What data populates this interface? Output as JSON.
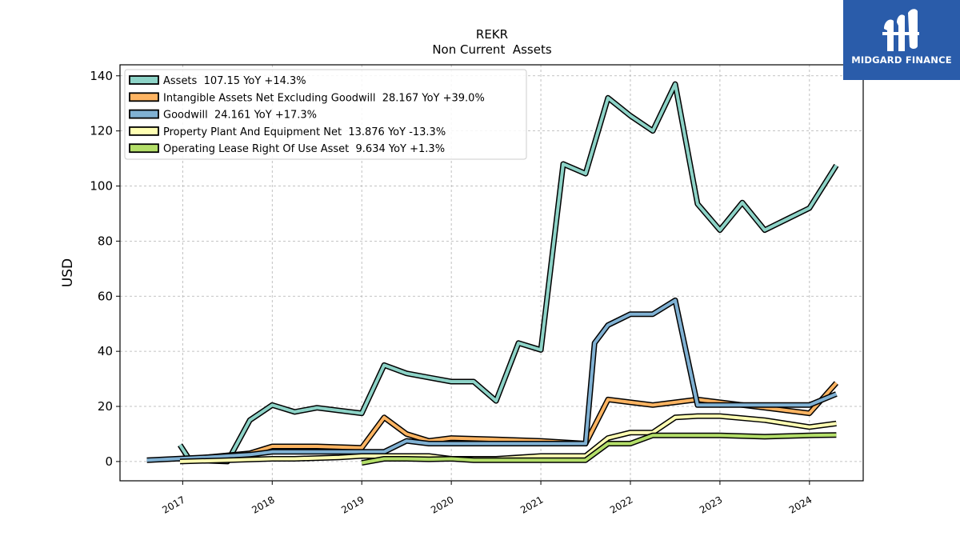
{
  "header": {
    "ticker": "REKR",
    "subtitle": "Non Current  Assets"
  },
  "logo": {
    "text": "MIDGARD FINANCE",
    "bg_color": "#2a5caa"
  },
  "chart_data": {
    "type": "line",
    "title": "REKR",
    "subtitle": "Non Current  Assets",
    "ylabel": "USD",
    "xlabel": "",
    "ylim": [
      -7,
      144
    ],
    "xlim": [
      2016.3,
      2024.6
    ],
    "grid": true,
    "legend_position": "top-left",
    "yticks": [
      0,
      20,
      40,
      60,
      80,
      100,
      120,
      140
    ],
    "xticks": [
      2017,
      2018,
      2019,
      2020,
      2021,
      2022,
      2023,
      2024
    ],
    "series": [
      {
        "name": "Assets  107.15 YoY +14.3%",
        "color": "#8dd3c7",
        "points": [
          [
            2016.97,
            6
          ],
          [
            2017.08,
            0.5
          ],
          [
            2017.5,
            0
          ],
          [
            2017.75,
            15
          ],
          [
            2018.0,
            20.5
          ],
          [
            2018.25,
            18
          ],
          [
            2018.5,
            19.5
          ],
          [
            2018.75,
            18.5
          ],
          [
            2019.0,
            17.5
          ],
          [
            2019.25,
            35
          ],
          [
            2019.5,
            32
          ],
          [
            2019.75,
            30.5
          ],
          [
            2020.0,
            29
          ],
          [
            2020.25,
            29
          ],
          [
            2020.5,
            22
          ],
          [
            2020.75,
            43
          ],
          [
            2021.0,
            40.5
          ],
          [
            2021.25,
            108
          ],
          [
            2021.5,
            104.5
          ],
          [
            2021.75,
            132
          ],
          [
            2022.0,
            125.5
          ],
          [
            2022.25,
            120
          ],
          [
            2022.5,
            137
          ],
          [
            2022.75,
            93.5
          ],
          [
            2023.0,
            84
          ],
          [
            2023.25,
            94
          ],
          [
            2023.5,
            84
          ],
          [
            2023.75,
            88
          ],
          [
            2024.0,
            92
          ],
          [
            2024.3,
            107.5
          ]
        ]
      },
      {
        "name": "Intangible Assets Net Excluding Goodwill  28.167 YoY +39.0%",
        "color": "#fdb462",
        "points": [
          [
            2017.08,
            1
          ],
          [
            2017.75,
            3
          ],
          [
            2018.0,
            5.5
          ],
          [
            2018.25,
            5.5
          ],
          [
            2018.5,
            5.5
          ],
          [
            2019.0,
            5
          ],
          [
            2019.25,
            16
          ],
          [
            2019.5,
            10
          ],
          [
            2019.75,
            7.5
          ],
          [
            2020.0,
            8.5
          ],
          [
            2020.5,
            8
          ],
          [
            2021.0,
            7.5
          ],
          [
            2021.5,
            6.5
          ],
          [
            2021.75,
            22.5
          ],
          [
            2022.0,
            21.5
          ],
          [
            2022.25,
            20.5
          ],
          [
            2022.5,
            21.5
          ],
          [
            2022.75,
            22.5
          ],
          [
            2023.0,
            21.5
          ],
          [
            2023.5,
            19.5
          ],
          [
            2024.0,
            17.5
          ],
          [
            2024.3,
            28.5
          ]
        ]
      },
      {
        "name": "Goodwill  24.161 YoY +17.3%",
        "color": "#80b1d3",
        "points": [
          [
            2016.6,
            0.5
          ],
          [
            2017.25,
            1.5
          ],
          [
            2017.75,
            2.5
          ],
          [
            2018.0,
            3.5
          ],
          [
            2018.5,
            3.5
          ],
          [
            2019.0,
            3.5
          ],
          [
            2019.25,
            3.5
          ],
          [
            2019.5,
            7.5
          ],
          [
            2019.75,
            6.5
          ],
          [
            2020.0,
            6.5
          ],
          [
            2021.0,
            6.5
          ],
          [
            2021.5,
            6.5
          ],
          [
            2021.6,
            43
          ],
          [
            2021.75,
            49.5
          ],
          [
            2022.0,
            53.5
          ],
          [
            2022.25,
            53.5
          ],
          [
            2022.5,
            58.5
          ],
          [
            2022.75,
            20.5
          ],
          [
            2023.0,
            20.5
          ],
          [
            2023.5,
            20.5
          ],
          [
            2024.0,
            20.5
          ],
          [
            2024.3,
            24.5
          ]
        ]
      },
      {
        "name": "Property Plant And Equipment Net  13.876 YoY -13.3%",
        "color": "#ffffb3",
        "points": [
          [
            2016.97,
            0
          ],
          [
            2017.5,
            0.5
          ],
          [
            2018.0,
            1
          ],
          [
            2018.25,
            1
          ],
          [
            2018.75,
            1.5
          ],
          [
            2019.0,
            2
          ],
          [
            2019.25,
            2
          ],
          [
            2019.5,
            2
          ],
          [
            2019.75,
            2
          ],
          [
            2020.0,
            1
          ],
          [
            2020.25,
            1
          ],
          [
            2020.5,
            1
          ],
          [
            2021.0,
            2
          ],
          [
            2021.5,
            2
          ],
          [
            2021.75,
            8.5
          ],
          [
            2022.0,
            10.5
          ],
          [
            2022.25,
            10.5
          ],
          [
            2022.5,
            16
          ],
          [
            2022.75,
            16.5
          ],
          [
            2023.0,
            16.5
          ],
          [
            2023.5,
            15
          ],
          [
            2024.0,
            12.5
          ],
          [
            2024.3,
            13.8
          ]
        ]
      },
      {
        "name": "Operating Lease Right Of Use Asset  9.634 YoY +1.3%",
        "color": "#b3de69",
        "points": [
          [
            2019.0,
            -0.5
          ],
          [
            2019.25,
            1
          ],
          [
            2019.5,
            1
          ],
          [
            2019.75,
            0.8
          ],
          [
            2020.0,
            1
          ],
          [
            2020.25,
            0.5
          ],
          [
            2020.5,
            0.5
          ],
          [
            2021.0,
            0.5
          ],
          [
            2021.5,
            0.5
          ],
          [
            2021.75,
            6.5
          ],
          [
            2022.0,
            6.5
          ],
          [
            2022.25,
            9.5
          ],
          [
            2022.5,
            9.5
          ],
          [
            2023.0,
            9.5
          ],
          [
            2023.5,
            9
          ],
          [
            2024.0,
            9.5
          ],
          [
            2024.3,
            9.6
          ]
        ]
      }
    ]
  }
}
